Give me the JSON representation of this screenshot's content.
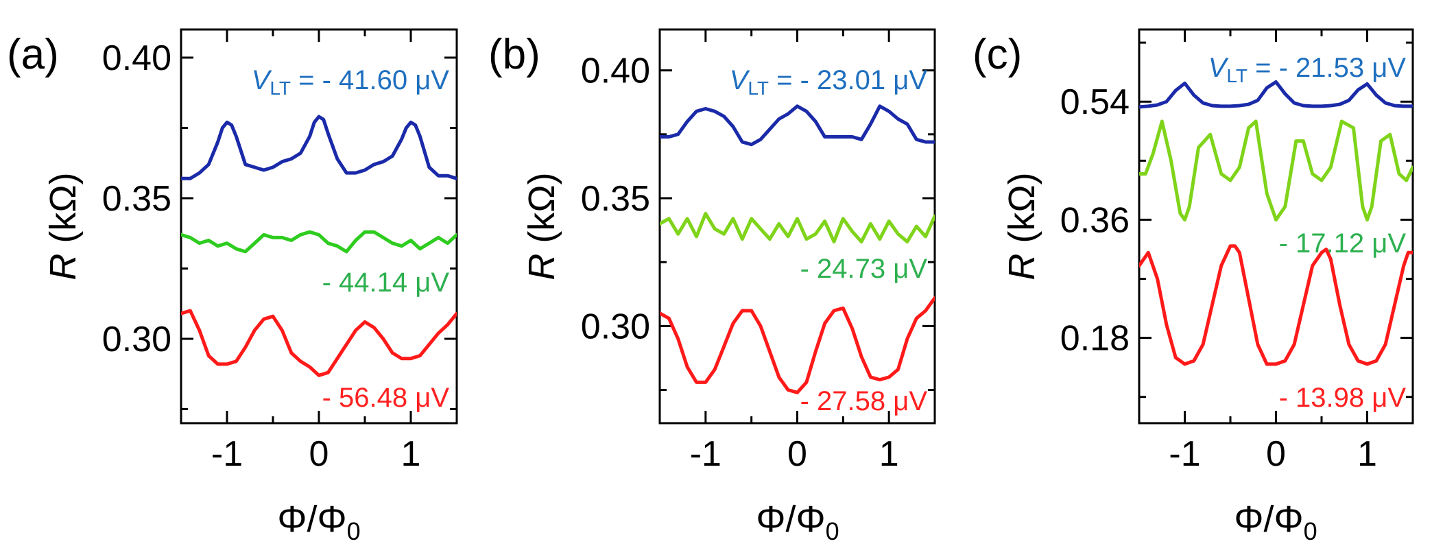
{
  "chart_data": [
    {
      "type": "line",
      "panel_label": "(a)",
      "xlabel": "Φ/Φ₀",
      "ylabel": "R (kΩ)",
      "xlim": [
        -1.5,
        1.5
      ],
      "ylim": [
        0.27,
        0.41
      ],
      "x_ticks": [
        -1,
        0,
        1
      ],
      "x_tick_labels": [
        "-1",
        "0",
        "1"
      ],
      "y_ticks": [
        0.3,
        0.35,
        0.4
      ],
      "y_tick_labels": [
        "0.30",
        "0.35",
        "0.40"
      ],
      "series": [
        {
          "name": "blue",
          "color": "#1a2aa8",
          "label": "V_LT = - 41.60 μV",
          "label_text": "- 41.60 μV",
          "label_color": "#1f6fbf",
          "x": [
            -1.5,
            -1.4,
            -1.3,
            -1.2,
            -1.1,
            -1.05,
            -1.0,
            -0.95,
            -0.9,
            -0.8,
            -0.7,
            -0.6,
            -0.5,
            -0.4,
            -0.3,
            -0.2,
            -0.1,
            -0.05,
            0.0,
            0.05,
            0.1,
            0.2,
            0.3,
            0.4,
            0.5,
            0.6,
            0.7,
            0.8,
            0.9,
            0.95,
            1.0,
            1.05,
            1.1,
            1.2,
            1.3,
            1.4,
            1.5
          ],
          "y": [
            0.357,
            0.357,
            0.359,
            0.362,
            0.37,
            0.375,
            0.377,
            0.376,
            0.372,
            0.362,
            0.361,
            0.36,
            0.361,
            0.363,
            0.364,
            0.366,
            0.372,
            0.377,
            0.379,
            0.378,
            0.373,
            0.364,
            0.359,
            0.359,
            0.36,
            0.362,
            0.363,
            0.365,
            0.371,
            0.375,
            0.377,
            0.376,
            0.372,
            0.361,
            0.358,
            0.358,
            0.357
          ]
        },
        {
          "name": "green",
          "color": "#2ecc1f",
          "label": "- 44.14 μV",
          "label_text": "- 44.14 μV",
          "label_color": "#2db04f",
          "x": [
            -1.5,
            -1.4,
            -1.3,
            -1.2,
            -1.1,
            -1.0,
            -0.9,
            -0.8,
            -0.7,
            -0.6,
            -0.5,
            -0.4,
            -0.3,
            -0.2,
            -0.1,
            0.0,
            0.1,
            0.2,
            0.3,
            0.4,
            0.5,
            0.6,
            0.7,
            0.8,
            0.9,
            1.0,
            1.1,
            1.2,
            1.3,
            1.4,
            1.5
          ],
          "y": [
            0.337,
            0.336,
            0.334,
            0.335,
            0.333,
            0.334,
            0.332,
            0.331,
            0.334,
            0.337,
            0.336,
            0.336,
            0.335,
            0.337,
            0.338,
            0.337,
            0.334,
            0.333,
            0.331,
            0.335,
            0.338,
            0.338,
            0.336,
            0.334,
            0.333,
            0.335,
            0.332,
            0.334,
            0.336,
            0.334,
            0.337
          ]
        },
        {
          "name": "red",
          "color": "#ff1a1a",
          "label": "- 56.48 μV",
          "label_text": "- 56.48 μV",
          "label_color": "#ff2020",
          "x": [
            -1.5,
            -1.4,
            -1.3,
            -1.2,
            -1.1,
            -1.0,
            -0.9,
            -0.8,
            -0.7,
            -0.6,
            -0.5,
            -0.4,
            -0.3,
            -0.2,
            -0.1,
            0.0,
            0.1,
            0.2,
            0.3,
            0.4,
            0.5,
            0.6,
            0.7,
            0.8,
            0.9,
            1.0,
            1.1,
            1.2,
            1.3,
            1.4,
            1.5
          ],
          "y": [
            0.309,
            0.31,
            0.303,
            0.294,
            0.291,
            0.291,
            0.292,
            0.297,
            0.303,
            0.307,
            0.308,
            0.303,
            0.295,
            0.292,
            0.29,
            0.287,
            0.288,
            0.293,
            0.298,
            0.303,
            0.306,
            0.304,
            0.3,
            0.295,
            0.293,
            0.293,
            0.294,
            0.298,
            0.302,
            0.305,
            0.309
          ]
        }
      ]
    },
    {
      "type": "line",
      "panel_label": "(b)",
      "xlabel": "Φ/Φ₀",
      "ylabel": "R (kΩ)",
      "xlim": [
        -1.5,
        1.5
      ],
      "ylim": [
        0.262,
        0.416
      ],
      "x_ticks": [
        -1,
        0,
        1
      ],
      "x_tick_labels": [
        "-1",
        "0",
        "1"
      ],
      "y_ticks": [
        0.3,
        0.35,
        0.4
      ],
      "y_tick_labels": [
        "0.30",
        "0.35",
        "0.40"
      ],
      "series": [
        {
          "name": "blue",
          "color": "#1a2aa8",
          "label": "V_LT = - 23.01 μV",
          "label_text": "- 23.01 μV",
          "label_color": "#1f6fbf",
          "x": [
            -1.5,
            -1.4,
            -1.3,
            -1.2,
            -1.1,
            -1.0,
            -0.9,
            -0.8,
            -0.7,
            -0.6,
            -0.5,
            -0.4,
            -0.3,
            -0.2,
            -0.1,
            0.0,
            0.1,
            0.2,
            0.3,
            0.4,
            0.5,
            0.6,
            0.7,
            0.8,
            0.9,
            1.0,
            1.1,
            1.2,
            1.3,
            1.4,
            1.5
          ],
          "y": [
            0.374,
            0.374,
            0.375,
            0.38,
            0.384,
            0.385,
            0.384,
            0.382,
            0.378,
            0.372,
            0.371,
            0.373,
            0.377,
            0.381,
            0.383,
            0.386,
            0.384,
            0.38,
            0.374,
            0.374,
            0.374,
            0.374,
            0.373,
            0.379,
            0.386,
            0.384,
            0.381,
            0.379,
            0.373,
            0.372,
            0.372
          ]
        },
        {
          "name": "green",
          "color": "#7fd41a",
          "label": "- 24.73 μV",
          "label_text": "- 24.73 μV",
          "label_color": "#2db04f",
          "x": [
            -1.5,
            -1.4,
            -1.3,
            -1.2,
            -1.1,
            -1.0,
            -0.9,
            -0.8,
            -0.7,
            -0.6,
            -0.5,
            -0.4,
            -0.3,
            -0.2,
            -0.1,
            0.0,
            0.1,
            0.2,
            0.3,
            0.4,
            0.5,
            0.6,
            0.7,
            0.8,
            0.9,
            1.0,
            1.1,
            1.2,
            1.3,
            1.4,
            1.5
          ],
          "y": [
            0.34,
            0.342,
            0.336,
            0.342,
            0.335,
            0.344,
            0.338,
            0.336,
            0.342,
            0.334,
            0.342,
            0.338,
            0.334,
            0.34,
            0.335,
            0.342,
            0.334,
            0.336,
            0.341,
            0.333,
            0.342,
            0.337,
            0.333,
            0.34,
            0.334,
            0.341,
            0.336,
            0.333,
            0.339,
            0.335,
            0.343
          ]
        },
        {
          "name": "red",
          "color": "#ff1a1a",
          "label": "- 27.58 μV",
          "label_text": "- 27.58 μV",
          "label_color": "#ff2020",
          "x": [
            -1.5,
            -1.4,
            -1.3,
            -1.2,
            -1.1,
            -1.0,
            -0.9,
            -0.8,
            -0.7,
            -0.6,
            -0.5,
            -0.4,
            -0.3,
            -0.2,
            -0.1,
            0.0,
            0.1,
            0.2,
            0.3,
            0.4,
            0.5,
            0.6,
            0.7,
            0.8,
            0.9,
            1.0,
            1.1,
            1.2,
            1.3,
            1.4,
            1.5
          ],
          "y": [
            0.305,
            0.303,
            0.295,
            0.284,
            0.278,
            0.278,
            0.283,
            0.292,
            0.301,
            0.306,
            0.306,
            0.3,
            0.29,
            0.28,
            0.275,
            0.274,
            0.278,
            0.29,
            0.301,
            0.306,
            0.307,
            0.299,
            0.288,
            0.28,
            0.279,
            0.28,
            0.283,
            0.295,
            0.303,
            0.306,
            0.311
          ]
        }
      ]
    },
    {
      "type": "line",
      "panel_label": "(c)",
      "xlabel": "Φ/Φ₀",
      "ylabel": "R (kΩ)",
      "xlim": [
        -1.5,
        1.5
      ],
      "ylim": [
        0.05,
        0.65
      ],
      "x_ticks": [
        -1,
        0,
        1
      ],
      "x_tick_labels": [
        "-1",
        "0",
        "1"
      ],
      "y_ticks": [
        0.18,
        0.36,
        0.54
      ],
      "y_tick_labels": [
        "0.18",
        "0.36",
        "0.54"
      ],
      "series": [
        {
          "name": "blue",
          "color": "#1a2aa8",
          "label": "V_LT = - 21.53 μV",
          "label_text": "- 21.53 μV",
          "label_color": "#1f6fbf",
          "x": [
            -1.5,
            -1.4,
            -1.3,
            -1.2,
            -1.1,
            -1.0,
            -0.9,
            -0.8,
            -0.7,
            -0.6,
            -0.5,
            -0.4,
            -0.3,
            -0.2,
            -0.1,
            0.0,
            0.1,
            0.2,
            0.3,
            0.4,
            0.5,
            0.6,
            0.7,
            0.8,
            0.9,
            1.0,
            1.1,
            1.2,
            1.3,
            1.4,
            1.5
          ],
          "y": [
            0.532,
            0.533,
            0.535,
            0.54,
            0.557,
            0.568,
            0.55,
            0.538,
            0.534,
            0.533,
            0.533,
            0.534,
            0.536,
            0.542,
            0.561,
            0.57,
            0.552,
            0.538,
            0.534,
            0.533,
            0.533,
            0.534,
            0.536,
            0.542,
            0.558,
            0.567,
            0.55,
            0.538,
            0.534,
            0.533,
            0.533
          ]
        },
        {
          "name": "green",
          "color": "#7fd41a",
          "label": "- 17.12 μV",
          "label_text": "- 17.12 μV",
          "label_color": "#2db04f",
          "x": [
            -1.5,
            -1.43,
            -1.35,
            -1.25,
            -1.15,
            -1.05,
            -1.0,
            -0.95,
            -0.85,
            -0.72,
            -0.6,
            -0.5,
            -0.4,
            -0.3,
            -0.22,
            -0.1,
            0.0,
            0.1,
            0.22,
            0.3,
            0.4,
            0.5,
            0.6,
            0.72,
            0.85,
            0.95,
            1.0,
            1.05,
            1.15,
            1.25,
            1.35,
            1.43,
            1.5
          ],
          "y": [
            0.43,
            0.43,
            0.46,
            0.51,
            0.45,
            0.37,
            0.36,
            0.38,
            0.47,
            0.49,
            0.43,
            0.42,
            0.44,
            0.5,
            0.51,
            0.4,
            0.36,
            0.38,
            0.48,
            0.48,
            0.43,
            0.42,
            0.44,
            0.51,
            0.5,
            0.38,
            0.36,
            0.38,
            0.48,
            0.49,
            0.43,
            0.42,
            0.44
          ]
        },
        {
          "name": "red",
          "color": "#ff1a1a",
          "label": "- 13.98 μV",
          "label_text": "- 13.98 μV",
          "label_color": "#ff2020",
          "x": [
            -1.5,
            -1.45,
            -1.4,
            -1.3,
            -1.2,
            -1.1,
            -1.0,
            -0.9,
            -0.8,
            -0.7,
            -0.6,
            -0.5,
            -0.45,
            -0.4,
            -0.3,
            -0.2,
            -0.1,
            0.0,
            0.1,
            0.2,
            0.3,
            0.4,
            0.5,
            0.55,
            0.6,
            0.7,
            0.8,
            0.9,
            1.0,
            1.1,
            1.2,
            1.3,
            1.4,
            1.45,
            1.5
          ],
          "y": [
            0.29,
            0.3,
            0.31,
            0.27,
            0.2,
            0.15,
            0.14,
            0.145,
            0.17,
            0.23,
            0.29,
            0.32,
            0.32,
            0.31,
            0.24,
            0.17,
            0.14,
            0.14,
            0.145,
            0.17,
            0.23,
            0.29,
            0.31,
            0.315,
            0.3,
            0.23,
            0.17,
            0.145,
            0.14,
            0.145,
            0.17,
            0.23,
            0.29,
            0.31,
            0.31
          ]
        }
      ]
    }
  ]
}
